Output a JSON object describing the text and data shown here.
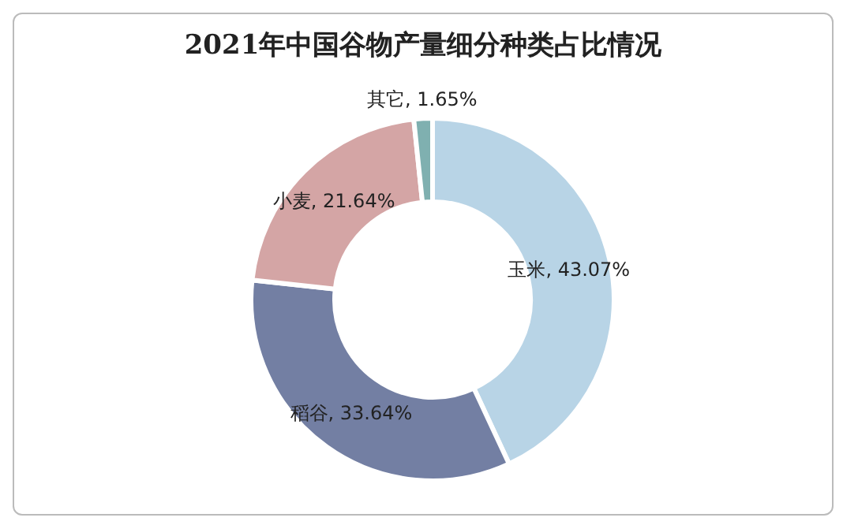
{
  "chart_data": {
    "type": "donut",
    "title": "2021年中国谷物产量细分种类占比情况",
    "categories": [
      "玉米",
      "稻谷",
      "小麦",
      "其它"
    ],
    "values": [
      43.07,
      33.64,
      21.64,
      1.65
    ],
    "value_labels": [
      ", 43.07%",
      ", 33.64%",
      ", 21.64%",
      ", 1.65%"
    ],
    "colors": [
      "#b8d4e6",
      "#737fa3",
      "#d4a5a5",
      "#7fb0b0"
    ],
    "legend": false
  }
}
